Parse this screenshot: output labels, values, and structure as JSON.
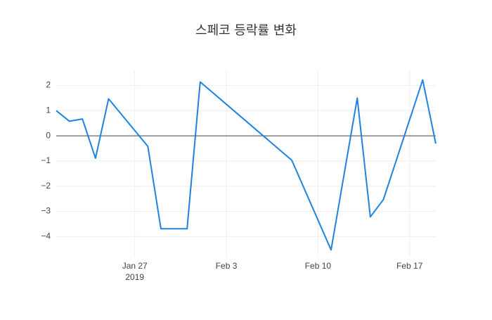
{
  "chart_data": {
    "type": "line",
    "title": "스페코 등락률 변화",
    "x": [
      "2019-01-21",
      "2019-01-22",
      "2019-01-23",
      "2019-01-24",
      "2019-01-25",
      "2019-01-28",
      "2019-01-29",
      "2019-01-31",
      "2019-02-01",
      "2019-02-08",
      "2019-02-11",
      "2019-02-13",
      "2019-02-14",
      "2019-02-15",
      "2019-02-18",
      "2019-02-19"
    ],
    "series": [
      {
        "color": "#1f82e0",
        "values": [
          1.0,
          0.58,
          0.67,
          -0.89,
          1.47,
          -0.42,
          -3.69,
          -3.69,
          2.14,
          -0.97,
          -4.53,
          1.5,
          -3.22,
          -2.53,
          2.22,
          -0.31
        ]
      }
    ],
    "xlim": [
      "2019-01-21",
      "2019-02-19"
    ],
    "xticks": [
      {
        "value": "2019-01-27",
        "label": "Jan 27"
      },
      {
        "value": "2019-02-03",
        "label": "Feb 3"
      },
      {
        "value": "2019-02-10",
        "label": "Feb 10"
      },
      {
        "value": "2019-02-17",
        "label": "Feb 17"
      }
    ],
    "x_year_label": "2019",
    "ylim": [
      -4.8,
      2.6
    ],
    "yticks": [
      {
        "value": -4,
        "label": "−4"
      },
      {
        "value": -3,
        "label": "−3"
      },
      {
        "value": -2,
        "label": "−2"
      },
      {
        "value": -1,
        "label": "−1"
      },
      0,
      1,
      2
    ],
    "grid": true,
    "zeroline": true
  }
}
